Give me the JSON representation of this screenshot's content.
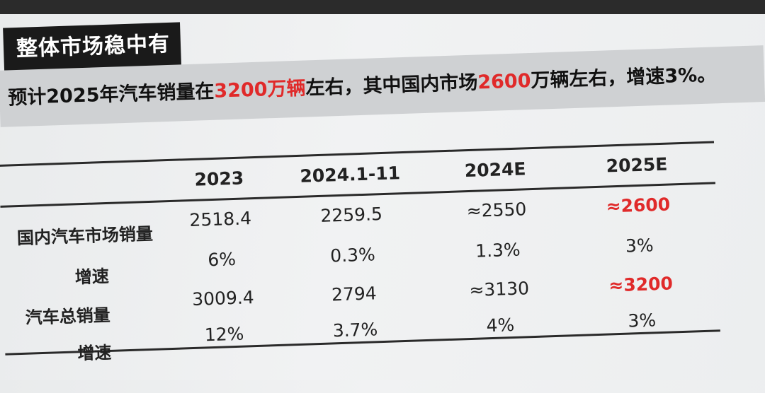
{
  "title": "整体市场稳中有进",
  "subtitle": {
    "part1": "预计2025年汽车销量在",
    "highlight1": "3200万辆",
    "part2": "左右，其中国内市场",
    "highlight2": "2600",
    "part3": "万辆左右，增速3%。"
  },
  "table": {
    "columns": [
      "2023",
      "2024.1-11",
      "2024E",
      "2025E"
    ],
    "rows": [
      {
        "label": "国内汽车市场销量",
        "values": [
          "2518.4",
          "2259.5",
          "≈2550",
          "≈2600"
        ]
      },
      {
        "label": "增速",
        "values": [
          "6%",
          "0.3%",
          "1.3%",
          "3%"
        ]
      },
      {
        "label": "汽车总销量",
        "values": [
          "3009.4",
          "2794",
          "≈3130",
          "≈3200"
        ]
      },
      {
        "label": "增速",
        "values": [
          "12%",
          "3.7%",
          "4%",
          "3%"
        ]
      }
    ]
  },
  "colors": {
    "highlight": "#e02a2a",
    "title_bg": "#1a1a1a",
    "subtitle_bg": "#cfd1d3"
  }
}
